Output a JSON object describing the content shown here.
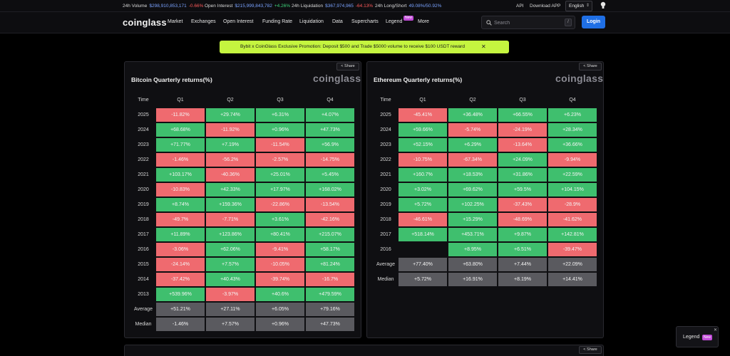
{
  "topbar": {
    "volume": {
      "label": "24h Volume",
      "value": "$298,910,853,171",
      "change": "-0.66%"
    },
    "open_interest": {
      "label": "Open Interest",
      "value": "$215,999,843,782",
      "change": "+4.26%"
    },
    "liquidation": {
      "label": "24h Liquidation",
      "value": "$367,974,965",
      "change": "-64.13%"
    },
    "long_short": {
      "label": "24h Long/Short",
      "value": "49.08%/50.92%"
    },
    "api": "API",
    "download": "Download APP",
    "language": "English"
  },
  "nav": {
    "logo": "coinglass",
    "items": [
      "Market",
      "Exchanges",
      "Open Interest",
      "Funding Rate",
      "Liquidation",
      "Data",
      "Supercharts",
      "Legend",
      "More"
    ],
    "new_badge": "New",
    "search_placeholder": "Search",
    "search_shortcut": "/",
    "login": "Login"
  },
  "promo": {
    "text": "Bybit x CoinGlass Exclusive Promotion: Deposit $500 and Trade $5000 volume to receive $100 USDT reward",
    "close": "✕"
  },
  "colors": {
    "positive": "#3fbf6e",
    "negative": "#ef6a6f",
    "summary": "#5a5a5f",
    "accent": "#1f6fe5",
    "promo": "#c5f53f"
  },
  "btc": {
    "share": "Share",
    "title": "Bitcoin Quarterly returns(%)",
    "watermark": "coinglass",
    "headers": [
      "Time",
      "Q1",
      "Q2",
      "Q3",
      "Q4"
    ],
    "rows": [
      {
        "label": "2025",
        "cells": [
          {
            "v": "-11.82%",
            "t": "r"
          },
          {
            "v": "+29.74%",
            "t": "g"
          },
          {
            "v": "+6.31%",
            "t": "g"
          },
          {
            "v": "+4.07%",
            "t": "g"
          }
        ]
      },
      {
        "label": "2024",
        "cells": [
          {
            "v": "+68.68%",
            "t": "g"
          },
          {
            "v": "-11.92%",
            "t": "r"
          },
          {
            "v": "+0.96%",
            "t": "g"
          },
          {
            "v": "+47.73%",
            "t": "g"
          }
        ]
      },
      {
        "label": "2023",
        "cells": [
          {
            "v": "+71.77%",
            "t": "g"
          },
          {
            "v": "+7.19%",
            "t": "g"
          },
          {
            "v": "-11.54%",
            "t": "r"
          },
          {
            "v": "+56.9%",
            "t": "g"
          }
        ]
      },
      {
        "label": "2022",
        "cells": [
          {
            "v": "-1.46%",
            "t": "r"
          },
          {
            "v": "-56.2%",
            "t": "r"
          },
          {
            "v": "-2.57%",
            "t": "r"
          },
          {
            "v": "-14.75%",
            "t": "r"
          }
        ]
      },
      {
        "label": "2021",
        "cells": [
          {
            "v": "+103.17%",
            "t": "g"
          },
          {
            "v": "-40.36%",
            "t": "r"
          },
          {
            "v": "+25.01%",
            "t": "g"
          },
          {
            "v": "+5.45%",
            "t": "g"
          }
        ]
      },
      {
        "label": "2020",
        "cells": [
          {
            "v": "-10.83%",
            "t": "r"
          },
          {
            "v": "+42.33%",
            "t": "g"
          },
          {
            "v": "+17.97%",
            "t": "g"
          },
          {
            "v": "+168.02%",
            "t": "g"
          }
        ]
      },
      {
        "label": "2019",
        "cells": [
          {
            "v": "+8.74%",
            "t": "g"
          },
          {
            "v": "+159.36%",
            "t": "g"
          },
          {
            "v": "-22.86%",
            "t": "r"
          },
          {
            "v": "-13.54%",
            "t": "r"
          }
        ]
      },
      {
        "label": "2018",
        "cells": [
          {
            "v": "-49.7%",
            "t": "r"
          },
          {
            "v": "-7.71%",
            "t": "r"
          },
          {
            "v": "+3.61%",
            "t": "g"
          },
          {
            "v": "-42.16%",
            "t": "r"
          }
        ]
      },
      {
        "label": "2017",
        "cells": [
          {
            "v": "+11.89%",
            "t": "g"
          },
          {
            "v": "+123.86%",
            "t": "g"
          },
          {
            "v": "+80.41%",
            "t": "g"
          },
          {
            "v": "+215.07%",
            "t": "g"
          }
        ]
      },
      {
        "label": "2016",
        "cells": [
          {
            "v": "-3.06%",
            "t": "r"
          },
          {
            "v": "+62.06%",
            "t": "g"
          },
          {
            "v": "-9.41%",
            "t": "r"
          },
          {
            "v": "+58.17%",
            "t": "g"
          }
        ]
      },
      {
        "label": "2015",
        "cells": [
          {
            "v": "-24.14%",
            "t": "r"
          },
          {
            "v": "+7.57%",
            "t": "g"
          },
          {
            "v": "-10.05%",
            "t": "r"
          },
          {
            "v": "+81.24%",
            "t": "g"
          }
        ]
      },
      {
        "label": "2014",
        "cells": [
          {
            "v": "-37.42%",
            "t": "r"
          },
          {
            "v": "+40.43%",
            "t": "g"
          },
          {
            "v": "-39.74%",
            "t": "r"
          },
          {
            "v": "-16.7%",
            "t": "r"
          }
        ]
      },
      {
        "label": "2013",
        "cells": [
          {
            "v": "+539.96%",
            "t": "g"
          },
          {
            "v": "-3.97%",
            "t": "r"
          },
          {
            "v": "+40.6%",
            "t": "g"
          },
          {
            "v": "+479.59%",
            "t": "g"
          }
        ]
      },
      {
        "label": "Average",
        "cells": [
          {
            "v": "+51.21%",
            "t": "s"
          },
          {
            "v": "+27.11%",
            "t": "s"
          },
          {
            "v": "+6.05%",
            "t": "s"
          },
          {
            "v": "+79.16%",
            "t": "s"
          }
        ]
      },
      {
        "label": "Median",
        "cells": [
          {
            "v": "-1.46%",
            "t": "s"
          },
          {
            "v": "+7.57%",
            "t": "s"
          },
          {
            "v": "+0.96%",
            "t": "s"
          },
          {
            "v": "+47.73%",
            "t": "s"
          }
        ]
      }
    ]
  },
  "eth": {
    "share": "Share",
    "title": "Ethereum Quarterly returns(%)",
    "watermark": "coinglass",
    "headers": [
      "Time",
      "Q1",
      "Q2",
      "Q3",
      "Q4"
    ],
    "rows": [
      {
        "label": "2025",
        "cells": [
          {
            "v": "-45.41%",
            "t": "r"
          },
          {
            "v": "+36.48%",
            "t": "g"
          },
          {
            "v": "+66.55%",
            "t": "g"
          },
          {
            "v": "+6.23%",
            "t": "g"
          }
        ]
      },
      {
        "label": "2024",
        "cells": [
          {
            "v": "+59.66%",
            "t": "g"
          },
          {
            "v": "-5.74%",
            "t": "r"
          },
          {
            "v": "-24.19%",
            "t": "r"
          },
          {
            "v": "+28.34%",
            "t": "g"
          }
        ]
      },
      {
        "label": "2023",
        "cells": [
          {
            "v": "+52.15%",
            "t": "g"
          },
          {
            "v": "+6.29%",
            "t": "g"
          },
          {
            "v": "-13.64%",
            "t": "r"
          },
          {
            "v": "+36.66%",
            "t": "g"
          }
        ]
      },
      {
        "label": "2022",
        "cells": [
          {
            "v": "-10.75%",
            "t": "r"
          },
          {
            "v": "-67.34%",
            "t": "r"
          },
          {
            "v": "+24.09%",
            "t": "g"
          },
          {
            "v": "-9.94%",
            "t": "r"
          }
        ]
      },
      {
        "label": "2021",
        "cells": [
          {
            "v": "+160.7%",
            "t": "g"
          },
          {
            "v": "+18.53%",
            "t": "g"
          },
          {
            "v": "+31.86%",
            "t": "g"
          },
          {
            "v": "+22.59%",
            "t": "g"
          }
        ]
      },
      {
        "label": "2020",
        "cells": [
          {
            "v": "+3.02%",
            "t": "g"
          },
          {
            "v": "+69.62%",
            "t": "g"
          },
          {
            "v": "+59.5%",
            "t": "g"
          },
          {
            "v": "+104.15%",
            "t": "g"
          }
        ]
      },
      {
        "label": "2019",
        "cells": [
          {
            "v": "+5.72%",
            "t": "g"
          },
          {
            "v": "+102.25%",
            "t": "g"
          },
          {
            "v": "-37.43%",
            "t": "r"
          },
          {
            "v": "-28.9%",
            "t": "r"
          }
        ]
      },
      {
        "label": "2018",
        "cells": [
          {
            "v": "-46.61%",
            "t": "r"
          },
          {
            "v": "+15.29%",
            "t": "g"
          },
          {
            "v": "-48.69%",
            "t": "r"
          },
          {
            "v": "-41.62%",
            "t": "r"
          }
        ]
      },
      {
        "label": "2017",
        "cells": [
          {
            "v": "+518.14%",
            "t": "g"
          },
          {
            "v": "+453.71%",
            "t": "g"
          },
          {
            "v": "+9.87%",
            "t": "g"
          },
          {
            "v": "+142.81%",
            "t": "g"
          }
        ]
      },
      {
        "label": "2016",
        "cells": [
          {
            "v": "",
            "t": "e"
          },
          {
            "v": "+8.95%",
            "t": "g"
          },
          {
            "v": "+6.51%",
            "t": "g"
          },
          {
            "v": "-39.47%",
            "t": "r"
          }
        ]
      },
      {
        "label": "Average",
        "cells": [
          {
            "v": "+77.40%",
            "t": "s"
          },
          {
            "v": "+63.80%",
            "t": "s"
          },
          {
            "v": "+7.44%",
            "t": "s"
          },
          {
            "v": "+22.09%",
            "t": "s"
          }
        ]
      },
      {
        "label": "Median",
        "cells": [
          {
            "v": "+5.72%",
            "t": "s"
          },
          {
            "v": "+16.91%",
            "t": "s"
          },
          {
            "v": "+8.19%",
            "t": "s"
          },
          {
            "v": "+14.41%",
            "t": "s"
          }
        ]
      }
    ]
  },
  "bottom_panel": {
    "share": "Share"
  },
  "legend_fab": {
    "label": "Legend",
    "badge": "New",
    "close": "✕"
  }
}
